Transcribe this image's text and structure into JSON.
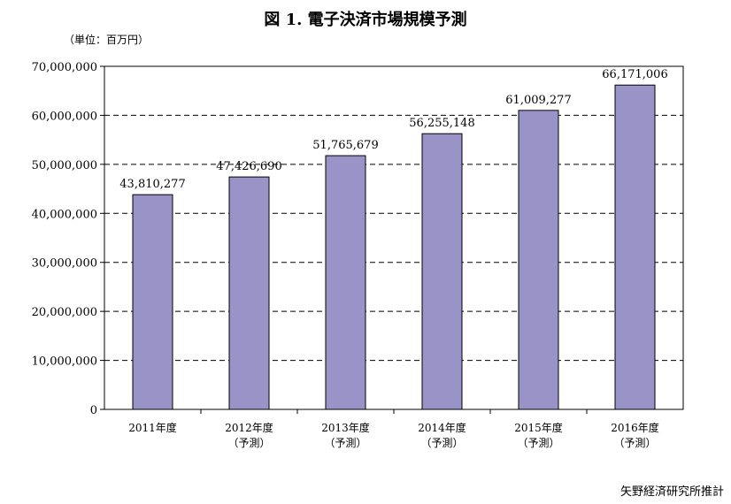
{
  "chart_data": {
    "type": "bar",
    "title": "図 1.  電子決済市場規模予測",
    "unit_label": "（単位：百万円）",
    "categories": [
      [
        "2011年度"
      ],
      [
        "2012年度",
        "（予測）"
      ],
      [
        "2013年度",
        "（予測）"
      ],
      [
        "2014年度",
        "（予測）"
      ],
      [
        "2015年度",
        "（予測）"
      ],
      [
        "2016年度",
        "（予測）"
      ]
    ],
    "values": [
      43810277,
      47426690,
      51765679,
      56255148,
      61009277,
      66171006
    ],
    "value_labels": [
      "43,810,277",
      "47,426,690",
      "51,765,679",
      "56,255,148",
      "61,009,277",
      "66,171,006"
    ],
    "ylim": [
      0,
      70000000
    ],
    "yticks": [
      0,
      10000000,
      20000000,
      30000000,
      40000000,
      50000000,
      60000000,
      70000000
    ],
    "ytick_labels": [
      "0",
      "10,000,000",
      "20,000,000",
      "30,000,000",
      "40,000,000",
      "50,000,000",
      "60,000,000",
      "70,000,000"
    ],
    "grid": "dashed horizontal",
    "legend": "none",
    "source_note": "矢野経済研究所推計",
    "colors": {
      "bar": "#9a93c8",
      "bar_edge": "#000000",
      "grid": "#000000"
    }
  }
}
